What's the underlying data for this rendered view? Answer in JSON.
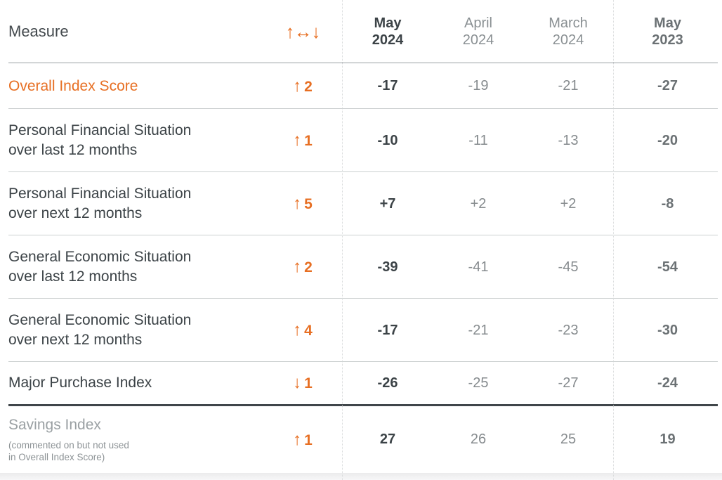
{
  "colors": {
    "accent_orange": "#e76f23",
    "dark_text": "#3c4347",
    "muted_text": "#8a9093",
    "prior_year_text": "#6b7174"
  },
  "header": {
    "measure_label": "Measure",
    "change_icons": {
      "up": "↑",
      "horizontal": "↔",
      "down": "↓"
    },
    "columns": [
      {
        "label": "May\n2024"
      },
      {
        "label": "April\n2024"
      },
      {
        "label": "March\n2024"
      },
      {
        "label": "May\n2023"
      }
    ]
  },
  "chart_data": {
    "type": "table",
    "columns": [
      "Measure",
      "Change vs prior month",
      "May 2024",
      "April 2024",
      "March 2024",
      "May 2023"
    ],
    "rows": [
      {
        "label": "Overall Index Score",
        "arrow": "↑",
        "delta": "2",
        "values": [
          "-17",
          "-19",
          "-21",
          "-27"
        ]
      },
      {
        "label": "Personal Financial Situation\nover last 12 months",
        "arrow": "↑",
        "delta": "1",
        "values": [
          "-10",
          "-11",
          "-13",
          "-20"
        ]
      },
      {
        "label": "Personal Financial Situation\nover next 12 months",
        "arrow": "↑",
        "delta": "5",
        "values": [
          "+7",
          "+2",
          "+2",
          "-8"
        ]
      },
      {
        "label": "General Economic Situation\nover last 12 months",
        "arrow": "↑",
        "delta": "2",
        "values": [
          "-39",
          "-41",
          "-45",
          "-54"
        ]
      },
      {
        "label": "General Economic Situation\nover next 12 months",
        "arrow": "↑",
        "delta": "4",
        "values": [
          "-17",
          "-21",
          "-23",
          "-30"
        ]
      },
      {
        "label": "Major Purchase Index",
        "arrow": "↓",
        "delta": "1",
        "values": [
          "-26",
          "-25",
          "-27",
          "-24"
        ]
      },
      {
        "label": "Savings Index",
        "note": "(commented on but not used\nin Overall Index Score)",
        "arrow": "↑",
        "delta": "1",
        "values": [
          "27",
          "26",
          "25",
          "19"
        ]
      }
    ]
  }
}
